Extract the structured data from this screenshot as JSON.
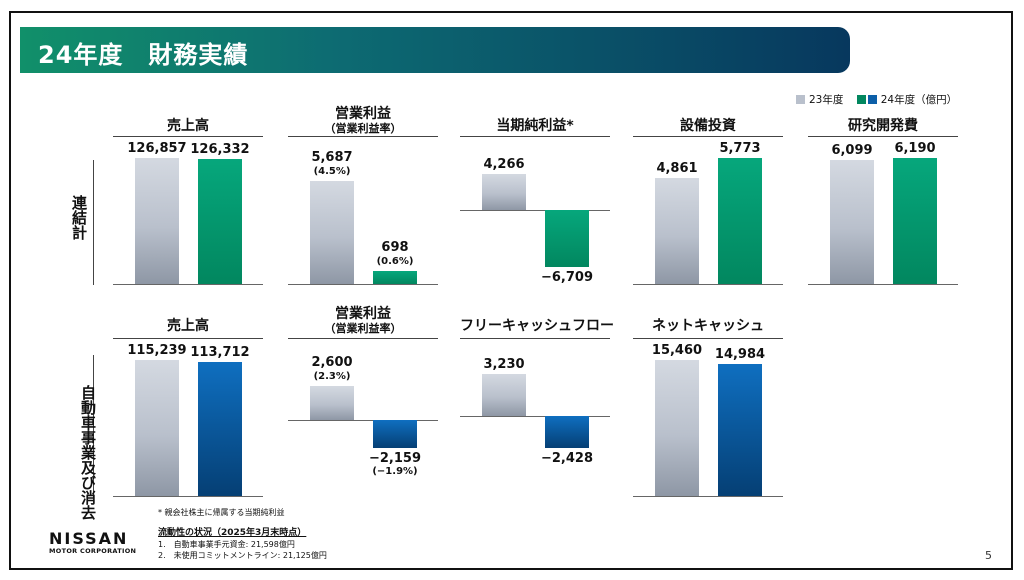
{
  "header": {
    "title": "24年度　財務実績"
  },
  "legend": {
    "items": [
      {
        "label": "23年度",
        "color": "#b9c0cc"
      },
      {
        "label": "24年度（億円）",
        "color": "#02875f",
        "color2": "#0c5fa8"
      }
    ]
  },
  "rows": {
    "consolidated": "連結計",
    "automotive": "自動車事業及び消去"
  },
  "chart_data": [
    {
      "type": "bar",
      "title": "売上高",
      "subtitle": "",
      "categories": [
        "23年度",
        "24年度"
      ],
      "values": [
        126857,
        126332
      ],
      "labels": [
        "126,857",
        "126,332"
      ],
      "pct_labels": [
        "",
        ""
      ],
      "segment": "連結計",
      "colors": [
        "#b9c0cc",
        "#02875f"
      ]
    },
    {
      "type": "bar",
      "title": "営業利益",
      "subtitle": "（営業利益率）",
      "categories": [
        "23年度",
        "24年度"
      ],
      "values": [
        5687,
        698
      ],
      "labels": [
        "5,687",
        "698"
      ],
      "pct_labels": [
        "(4.5%)",
        "(0.6%)"
      ],
      "segment": "連結計",
      "colors": [
        "#b9c0cc",
        "#02875f"
      ]
    },
    {
      "type": "bar",
      "title": "当期純利益*",
      "subtitle": "",
      "categories": [
        "23年度",
        "24年度"
      ],
      "values": [
        4266,
        -6709
      ],
      "labels": [
        "4,266",
        "−6,709"
      ],
      "pct_labels": [
        "",
        ""
      ],
      "segment": "連結計",
      "colors": [
        "#b9c0cc",
        "#02875f"
      ]
    },
    {
      "type": "bar",
      "title": "設備投資",
      "subtitle": "",
      "categories": [
        "23年度",
        "24年度"
      ],
      "values": [
        4861,
        5773
      ],
      "labels": [
        "4,861",
        "5,773"
      ],
      "pct_labels": [
        "",
        ""
      ],
      "segment": "連結計",
      "colors": [
        "#b9c0cc",
        "#02875f"
      ]
    },
    {
      "type": "bar",
      "title": "研究開発費",
      "subtitle": "",
      "categories": [
        "23年度",
        "24年度"
      ],
      "values": [
        6099,
        6190
      ],
      "labels": [
        "6,099",
        "6,190"
      ],
      "pct_labels": [
        "",
        ""
      ],
      "segment": "連結計",
      "colors": [
        "#b9c0cc",
        "#02875f"
      ]
    },
    {
      "type": "bar",
      "title": "売上高",
      "subtitle": "",
      "categories": [
        "23年度",
        "24年度"
      ],
      "values": [
        115239,
        113712
      ],
      "labels": [
        "115,239",
        "113,712"
      ],
      "pct_labels": [
        "",
        ""
      ],
      "segment": "自動車事業及び消去",
      "colors": [
        "#b9c0cc",
        "#0c5fa8"
      ]
    },
    {
      "type": "bar",
      "title": "営業利益",
      "subtitle": "（営業利益率）",
      "categories": [
        "23年度",
        "24年度"
      ],
      "values": [
        2600,
        -2159
      ],
      "labels": [
        "2,600",
        "−2,159"
      ],
      "pct_labels": [
        "(2.3%)",
        "(−1.9%)"
      ],
      "segment": "自動車事業及び消去",
      "colors": [
        "#b9c0cc",
        "#0c5fa8"
      ]
    },
    {
      "type": "bar",
      "title": "フリーキャッシュフロー",
      "subtitle": "",
      "categories": [
        "23年度",
        "24年度"
      ],
      "values": [
        3230,
        -2428
      ],
      "labels": [
        "3,230",
        "−2,428"
      ],
      "pct_labels": [
        "",
        ""
      ],
      "segment": "自動車事業及び消去",
      "colors": [
        "#b9c0cc",
        "#0c5fa8"
      ]
    },
    {
      "type": "bar",
      "title": "ネットキャッシュ",
      "subtitle": "",
      "categories": [
        "23年度",
        "24年度"
      ],
      "values": [
        15460,
        14984
      ],
      "labels": [
        "15,460",
        "14,984"
      ],
      "pct_labels": [
        "",
        ""
      ],
      "segment": "自動車事業及び消去",
      "colors": [
        "#b9c0cc",
        "#0c5fa8"
      ]
    }
  ],
  "footnote": "* 親会社株主に帰属する当期純利益",
  "liquidity": {
    "title": "流動性の状況（2025年3月末時点）",
    "items": [
      "1.　自動車事業手元資金: 21,598億円",
      "2.　未使用コミットメントライン: 21,125億円"
    ]
  },
  "logo": {
    "wordmark": "NISSAN",
    "sub": "MOTOR CORPORATION"
  },
  "page_number": "5"
}
